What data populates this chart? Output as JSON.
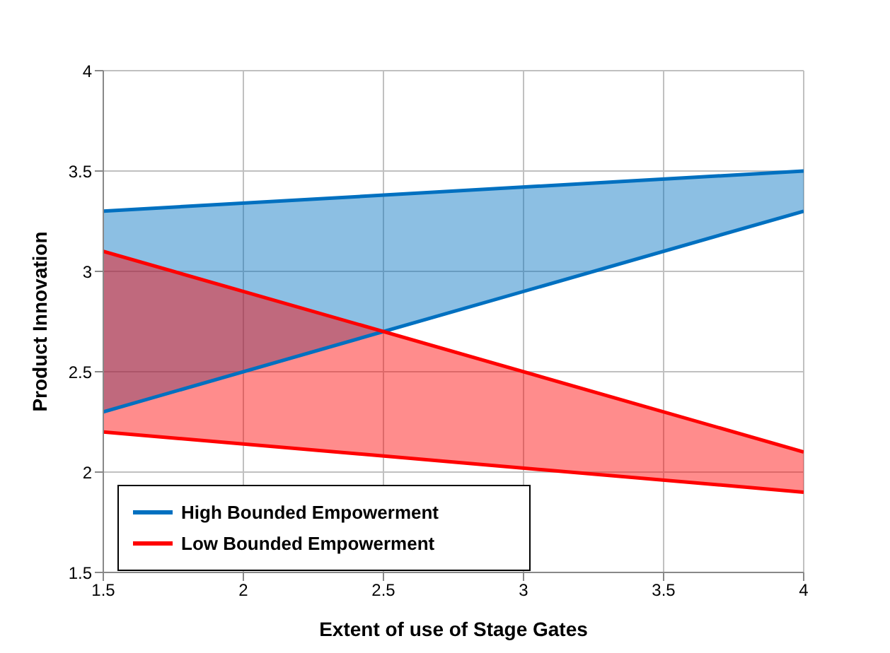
{
  "chart_data": {
    "type": "line",
    "xlabel": "Extent of use of Stage Gates",
    "ylabel": "Product Innovation",
    "x": [
      1.5,
      4
    ],
    "series": [
      {
        "name": "High Bounded Empowerment",
        "color": "#0070c0",
        "values": [
          3.3,
          3.5
        ],
        "lower": [
          2.3,
          3.3
        ],
        "upper": [
          3.3,
          3.5
        ]
      },
      {
        "color": "#0070c0",
        "values": [
          2.3,
          3.3
        ]
      },
      {
        "name": "Low Bounded Empowerment",
        "color": "#ff0000",
        "values": [
          3.1,
          2.1
        ],
        "lower": [
          2.2,
          1.9
        ],
        "upper": [
          3.1,
          2.1
        ]
      },
      {
        "color": "#ff0000",
        "values": [
          2.2,
          1.9
        ]
      }
    ],
    "xlim": [
      1.5,
      4
    ],
    "xticks": [
      1.5,
      2,
      2.5,
      3,
      3.5,
      4
    ],
    "ylim": [
      1.5,
      4
    ],
    "yticks": [
      1.5,
      2,
      2.5,
      3,
      3.5,
      4
    ],
    "grid": true,
    "legend": "bottom left",
    "marker": "none",
    "line_style": "solid"
  }
}
